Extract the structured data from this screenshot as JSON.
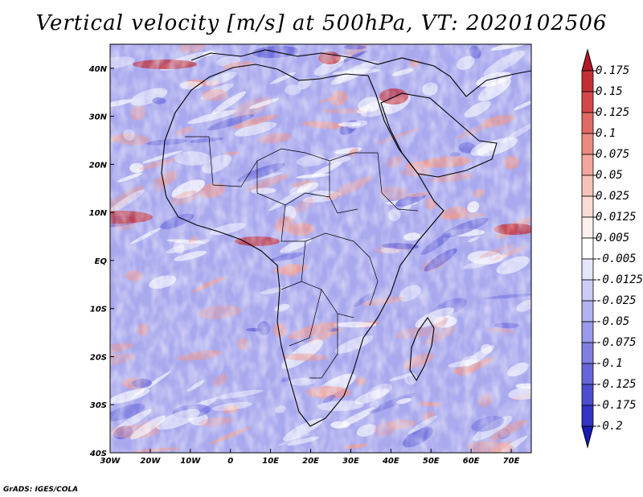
{
  "title": "Vertical velocity [m/s] at 500hPa, VT: 2020102506",
  "credit": "GrADS: IGES/COLA",
  "axes": {
    "lat_labels": [
      "40N",
      "30N",
      "20N",
      "10N",
      "EQ",
      "10S",
      "20S",
      "30S",
      "40S"
    ],
    "lat_values": [
      40,
      30,
      20,
      10,
      0,
      -10,
      -20,
      -30,
      -40
    ],
    "lon_labels": [
      "30W",
      "20W",
      "10W",
      "0",
      "10E",
      "20E",
      "30E",
      "40E",
      "50E",
      "60E",
      "70E"
    ],
    "lon_values": [
      -30,
      -20,
      -10,
      0,
      10,
      20,
      30,
      40,
      50,
      60,
      70
    ],
    "lon_range": [
      -30,
      75
    ],
    "lat_range": [
      -40,
      45
    ]
  },
  "colorbar": {
    "labels": [
      "0.175",
      "0.15",
      "0.125",
      "0.1",
      "0.075",
      "0.05",
      "0.025",
      "0.0125",
      "0.005",
      "-0.005",
      "-0.0125",
      "-0.025",
      "-0.05",
      "-0.075",
      "-0.1",
      "-0.125",
      "-0.175",
      "-0.2"
    ],
    "colors": [
      "#b2182b",
      "#c62e36",
      "#d6474a",
      "#e26a64",
      "#ec8b80",
      "#f2a79c",
      "#f7c3b9",
      "#fbdcd5",
      "#fdf0ed",
      "#ffffff",
      "#e6e6fb",
      "#ccccf6",
      "#b3b3f0",
      "#9a9aea",
      "#8080e2",
      "#6666da",
      "#4d4dd0",
      "#3333c4",
      "#1a1ab4"
    ]
  },
  "field_colors": {
    "positive_strong": "#c0303a",
    "positive": "#ee9a90",
    "neutral": "#ffffff",
    "negative": "#a9a9ee",
    "negative_strong": "#5a5ad6",
    "outline": "#000000"
  }
}
